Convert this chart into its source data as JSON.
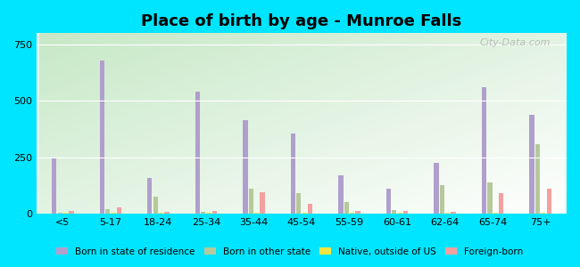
{
  "title": "Place of birth by age - Munroe Falls",
  "categories": [
    "<5",
    "5-17",
    "18-24",
    "25-34",
    "35-44",
    "45-54",
    "55-59",
    "60-61",
    "62-64",
    "65-74",
    "75+"
  ],
  "series": {
    "Born in state of residence": [
      248,
      680,
      160,
      540,
      415,
      355,
      170,
      110,
      225,
      560,
      440
    ],
    "Born in other state": [
      5,
      20,
      75,
      8,
      110,
      90,
      50,
      15,
      125,
      140,
      310
    ],
    "Native, outside of US": [
      3,
      3,
      3,
      5,
      3,
      3,
      3,
      3,
      3,
      3,
      3
    ],
    "Foreign-born": [
      12,
      28,
      8,
      12,
      95,
      45,
      12,
      12,
      8,
      90,
      110
    ]
  },
  "colors": {
    "Born in state of residence": "#b09fcc",
    "Born in other state": "#b5c99a",
    "Native, outside of US": "#f5e642",
    "Foreign-born": "#f4a0a0"
  },
  "ylim": [
    0,
    800
  ],
  "yticks": [
    0,
    250,
    500,
    750
  ],
  "figure_bg": "#00e5ff",
  "chart_bg": "#e8f5e9",
  "watermark": "City-Data.com"
}
